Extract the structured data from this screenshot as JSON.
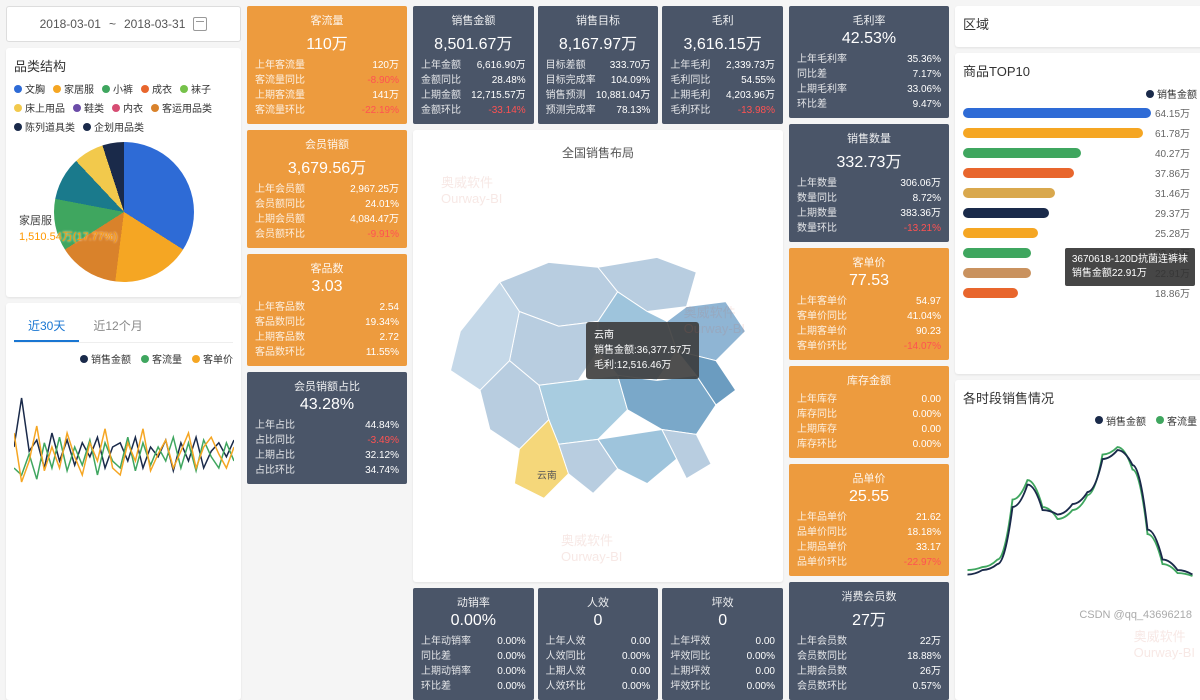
{
  "date_range": {
    "start": "2018-03-01",
    "sep": "~",
    "end": "2018-03-31"
  },
  "category": {
    "title": "品类结构",
    "items": [
      {
        "label": "文胸",
        "color": "#2e6bd6"
      },
      {
        "label": "家居服",
        "color": "#f5a623"
      },
      {
        "label": "小裤",
        "color": "#3fa65f"
      },
      {
        "label": "成衣",
        "color": "#e8662d"
      },
      {
        "label": "袜子",
        "color": "#76c24a"
      },
      {
        "label": "床上用品",
        "color": "#f2c94c"
      },
      {
        "label": "鞋类",
        "color": "#6b4ca8"
      },
      {
        "label": "内衣",
        "color": "#d64d73"
      },
      {
        "label": "客运用品类",
        "color": "#d9822b"
      },
      {
        "label": "陈列道具类",
        "color": "#1a2a4a"
      },
      {
        "label": "企划用品类",
        "color": "#1a2a4a"
      }
    ],
    "pie": {
      "highlight_name": "家居服",
      "highlight_value": "1,510.54万(17.77%)",
      "slices": [
        {
          "color": "#2e6bd6",
          "pct": 34
        },
        {
          "color": "#f5a623",
          "pct": 18
        },
        {
          "color": "#d9822b",
          "pct": 14
        },
        {
          "color": "#3fa65f",
          "pct": 12
        },
        {
          "color": "#1a7a8c",
          "pct": 10
        },
        {
          "color": "#f2c94c",
          "pct": 7
        },
        {
          "color": "#1a2a4a",
          "pct": 5
        }
      ]
    }
  },
  "trend": {
    "tabs": [
      {
        "label": "近30天",
        "active": true
      },
      {
        "label": "近12个月",
        "active": false
      }
    ],
    "legend": [
      {
        "label": "销售金额",
        "color": "#1a2a4a"
      },
      {
        "label": "客流量",
        "color": "#3fa65f"
      },
      {
        "label": "客单价",
        "color": "#f5a623"
      }
    ],
    "series": {
      "sales": [
        45,
        80,
        42,
        50,
        30,
        55,
        35,
        50,
        32,
        48,
        38,
        52,
        30,
        45,
        48,
        35,
        52,
        30,
        45,
        38,
        50,
        28,
        48,
        35,
        52,
        30,
        42,
        48,
        38,
        50
      ],
      "traffic": [
        30,
        25,
        40,
        22,
        48,
        30,
        52,
        28,
        45,
        32,
        50,
        25,
        48,
        35,
        30,
        52,
        28,
        48,
        32,
        45,
        35,
        52,
        30,
        48,
        28,
        50,
        38,
        30,
        48,
        35
      ],
      "price": [
        55,
        20,
        35,
        60,
        28,
        45,
        30,
        55,
        38,
        25,
        48,
        35,
        58,
        30,
        25,
        48,
        35,
        58,
        28,
        40,
        50,
        30,
        42,
        55,
        30,
        45,
        52,
        40,
        30,
        45
      ]
    }
  },
  "left_kpis": [
    {
      "bg": "orange",
      "title": "客流量",
      "value": "110万",
      "rows": [
        {
          "lbl": "上年客流量",
          "val": "120万"
        },
        {
          "lbl": "客流量同比",
          "val": "-8.90%",
          "neg": true
        },
        {
          "lbl": "上期客流量",
          "val": "141万"
        },
        {
          "lbl": "客流量环比",
          "val": "-22.19%",
          "neg": true
        }
      ]
    },
    {
      "bg": "orange",
      "title": "会员销额",
      "value": "3,679.56万",
      "rows": [
        {
          "lbl": "上年会员额",
          "val": "2,967.25万"
        },
        {
          "lbl": "会员额同比",
          "val": "24.01%"
        },
        {
          "lbl": "上期会员额",
          "val": "4,084.47万"
        },
        {
          "lbl": "会员额环比",
          "val": "-9.91%",
          "neg": true
        }
      ]
    },
    {
      "bg": "orange",
      "title": "客品数",
      "value": "3.03",
      "rows": [
        {
          "lbl": "上年客品数",
          "val": "2.54"
        },
        {
          "lbl": "客品数同比",
          "val": "19.34%"
        },
        {
          "lbl": "上期客品数",
          "val": "2.72"
        },
        {
          "lbl": "客品数环比",
          "val": "11.55%"
        }
      ]
    },
    {
      "bg": "dark",
      "title": "会员销额占比",
      "value": "43.28%",
      "rows": [
        {
          "lbl": "上年占比",
          "val": "44.84%"
        },
        {
          "lbl": "占比同比",
          "val": "-3.49%",
          "neg": true
        },
        {
          "lbl": "上期占比",
          "val": "32.12%"
        },
        {
          "lbl": "占比环比",
          "val": "34.74%"
        }
      ]
    }
  ],
  "top_kpis": [
    {
      "title": "销售金额",
      "value": "8,501.67万",
      "rows": [
        {
          "lbl": "上年金额",
          "val": "6,616.90万"
        },
        {
          "lbl": "金额同比",
          "val": "28.48%"
        },
        {
          "lbl": "上期金额",
          "val": "12,715.57万"
        },
        {
          "lbl": "金额环比",
          "val": "-33.14%",
          "neg": true
        }
      ]
    },
    {
      "title": "销售目标",
      "value": "8,167.97万",
      "rows": [
        {
          "lbl": "目标差额",
          "val": "333.70万"
        },
        {
          "lbl": "目标完成率",
          "val": "104.09%"
        },
        {
          "lbl": "销售预测",
          "val": "10,881.04万"
        },
        {
          "lbl": "预测完成率",
          "val": "78.13%"
        }
      ]
    },
    {
      "title": "毛利",
      "value": "3,616.15万",
      "rows": [
        {
          "lbl": "上年毛利",
          "val": "2,339.73万"
        },
        {
          "lbl": "毛利同比",
          "val": "54.55%"
        },
        {
          "lbl": "上期毛利",
          "val": "4,203.96万"
        },
        {
          "lbl": "毛利环比",
          "val": "-13.98%",
          "neg": true
        }
      ]
    }
  ],
  "top_right_kpis": [
    {
      "title": "毛利率",
      "value": "42.53%",
      "rows": [
        {
          "lbl": "上年毛利率",
          "val": "35.36%"
        },
        {
          "lbl": "同比差",
          "val": "7.17%"
        },
        {
          "lbl": "上期毛利率",
          "val": "33.06%"
        },
        {
          "lbl": "环比差",
          "val": "9.47%"
        }
      ]
    },
    {
      "title": "销售数量",
      "value": "332.73万",
      "rows": [
        {
          "lbl": "上年数量",
          "val": "306.06万"
        },
        {
          "lbl": "数量同比",
          "val": "8.72%"
        },
        {
          "lbl": "上期数量",
          "val": "383.36万"
        },
        {
          "lbl": "数量环比",
          "val": "-13.21%",
          "neg": true
        }
      ]
    }
  ],
  "right_kpis": [
    {
      "bg": "orange",
      "title": "客单价",
      "value": "77.53",
      "rows": [
        {
          "lbl": "上年客单价",
          "val": "54.97"
        },
        {
          "lbl": "客单价同比",
          "val": "41.04%"
        },
        {
          "lbl": "上期客单价",
          "val": "90.23"
        },
        {
          "lbl": "客单价环比",
          "val": "-14.07%",
          "neg": true
        }
      ]
    },
    {
      "bg": "orange",
      "title": "库存金额",
      "value": "",
      "rows": [
        {
          "lbl": "上年库存",
          "val": "0.00"
        },
        {
          "lbl": "库存同比",
          "val": "0.00%"
        },
        {
          "lbl": "上期库存",
          "val": "0.00"
        },
        {
          "lbl": "库存环比",
          "val": "0.00%"
        }
      ]
    },
    {
      "bg": "orange",
      "title": "品单价",
      "value": "25.55",
      "rows": [
        {
          "lbl": "上年品单价",
          "val": "21.62"
        },
        {
          "lbl": "品单价同比",
          "val": "18.18%"
        },
        {
          "lbl": "上期品单价",
          "val": "33.17"
        },
        {
          "lbl": "品单价环比",
          "val": "-22.97%",
          "neg": true
        }
      ]
    },
    {
      "bg": "dark",
      "title": "消费会员数",
      "value": "27万",
      "rows": [
        {
          "lbl": "上年会员数",
          "val": "22万"
        },
        {
          "lbl": "会员数同比",
          "val": "18.88%"
        },
        {
          "lbl": "上期会员数",
          "val": "26万"
        },
        {
          "lbl": "会员数环比",
          "val": "0.57%"
        }
      ]
    }
  ],
  "bottom_kpis": [
    {
      "title": "动销率",
      "value": "0.00%",
      "rows": [
        {
          "lbl": "上年动销率",
          "val": "0.00%"
        },
        {
          "lbl": "同比差",
          "val": "0.00%"
        },
        {
          "lbl": "上期动销率",
          "val": "0.00%"
        },
        {
          "lbl": "环比差",
          "val": "0.00%"
        }
      ]
    },
    {
      "title": "人效",
      "value": "0",
      "rows": [
        {
          "lbl": "上年人效",
          "val": "0.00"
        },
        {
          "lbl": "人效同比",
          "val": "0.00%"
        },
        {
          "lbl": "上期人效",
          "val": "0.00"
        },
        {
          "lbl": "人效环比",
          "val": "0.00%"
        }
      ]
    },
    {
      "title": "坪效",
      "value": "0",
      "rows": [
        {
          "lbl": "上年坪效",
          "val": "0.00"
        },
        {
          "lbl": "坪效同比",
          "val": "0.00%"
        },
        {
          "lbl": "上期坪效",
          "val": "0.00"
        },
        {
          "lbl": "坪效环比",
          "val": "0.00%"
        }
      ]
    }
  ],
  "map": {
    "title": "全国销售布局",
    "tooltip": {
      "region": "云南",
      "line1": "销售金额:36,377.57万",
      "line2": "毛利:12,516.46万"
    },
    "highlight": "云南"
  },
  "region": {
    "title": "区域"
  },
  "top10": {
    "title": "商品TOP10",
    "legend": "销售金额",
    "bars": [
      {
        "val": "64.15万",
        "pct": 100,
        "color": "#2e6bd6"
      },
      {
        "val": "61.78万",
        "pct": 96,
        "color": "#f5a623"
      },
      {
        "val": "40.27万",
        "pct": 63,
        "color": "#3fa65f"
      },
      {
        "val": "37.86万",
        "pct": 59,
        "color": "#e8662d"
      },
      {
        "val": "31.46万",
        "pct": 49,
        "color": "#d9a84d"
      },
      {
        "val": "29.37万",
        "pct": 46,
        "color": "#1a2a4a"
      },
      {
        "val": "25.28万",
        "pct": 40,
        "color": "#f5a623"
      },
      {
        "val": "22.94万",
        "pct": 36,
        "color": "#3fa65f"
      },
      {
        "val": "22.91万",
        "pct": 36,
        "color": "#c9925f"
      },
      {
        "val": "18.86万",
        "pct": 29,
        "color": "#e8662d"
      }
    ],
    "tooltip": {
      "line1": "3670618-120D抗菌连裤袜",
      "line2": "销售金额22.91万"
    }
  },
  "hourly": {
    "title": "各时段销售情况",
    "legend": [
      {
        "label": "销售金额",
        "color": "#1a2a4a"
      },
      {
        "label": "客流量",
        "color": "#3fa65f"
      }
    ],
    "sales": [
      5,
      8,
      12,
      50,
      65,
      48,
      45,
      52,
      60,
      82,
      88,
      78,
      35,
      15,
      8,
      5
    ],
    "traffic": [
      8,
      10,
      15,
      55,
      68,
      50,
      42,
      48,
      58,
      85,
      90,
      75,
      32,
      12,
      6,
      4
    ]
  },
  "watermark": "奥威软件\nOurway-BI",
  "csdn": "CSDN @qq_43696218"
}
